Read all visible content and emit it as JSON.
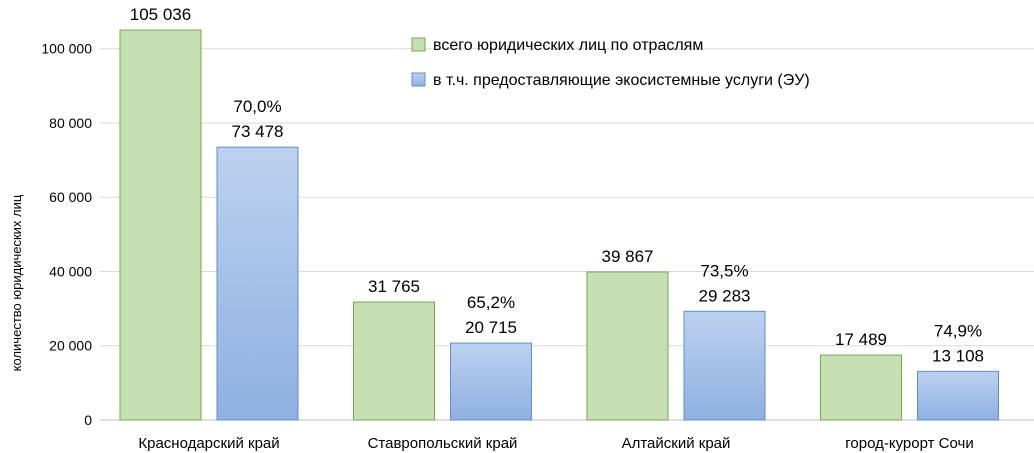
{
  "chart_data": {
    "type": "bar",
    "categories": [
      "Краснодарский край",
      "Ставропольский край",
      "Алтайский край",
      "город-курорт Сочи"
    ],
    "series": [
      {
        "name": "всего юридических лиц по отраслям",
        "values": [
          105036,
          31765,
          39867,
          17489
        ],
        "labels": [
          "105 036",
          "31 765",
          "39 867",
          "17 489"
        ],
        "color": "#c6e0b4",
        "border": "#70ad47"
      },
      {
        "name": "в т.ч. предоставляющие экосистемные услуги (ЭУ)",
        "values": [
          73478,
          20715,
          29283,
          13108
        ],
        "labels": [
          "73 478",
          "20 715",
          "29 283",
          "13 108"
        ],
        "percent_labels": [
          "70,0%",
          "65,2%",
          "73,5%",
          "74,9%"
        ],
        "color_top": "#bcd1ee",
        "color_bottom": "#8fb0e2",
        "border": "#5b8fd5"
      }
    ],
    "ylabel": "количество юридических лиц",
    "ylim": [
      0,
      105036
    ],
    "yticks": [
      0,
      20000,
      40000,
      60000,
      80000,
      100000
    ],
    "ytick_labels": [
      "0",
      "20 000",
      "40 000",
      "60 000",
      "80 000",
      "100 000"
    ],
    "grid": true,
    "legend_position": "top-right"
  }
}
